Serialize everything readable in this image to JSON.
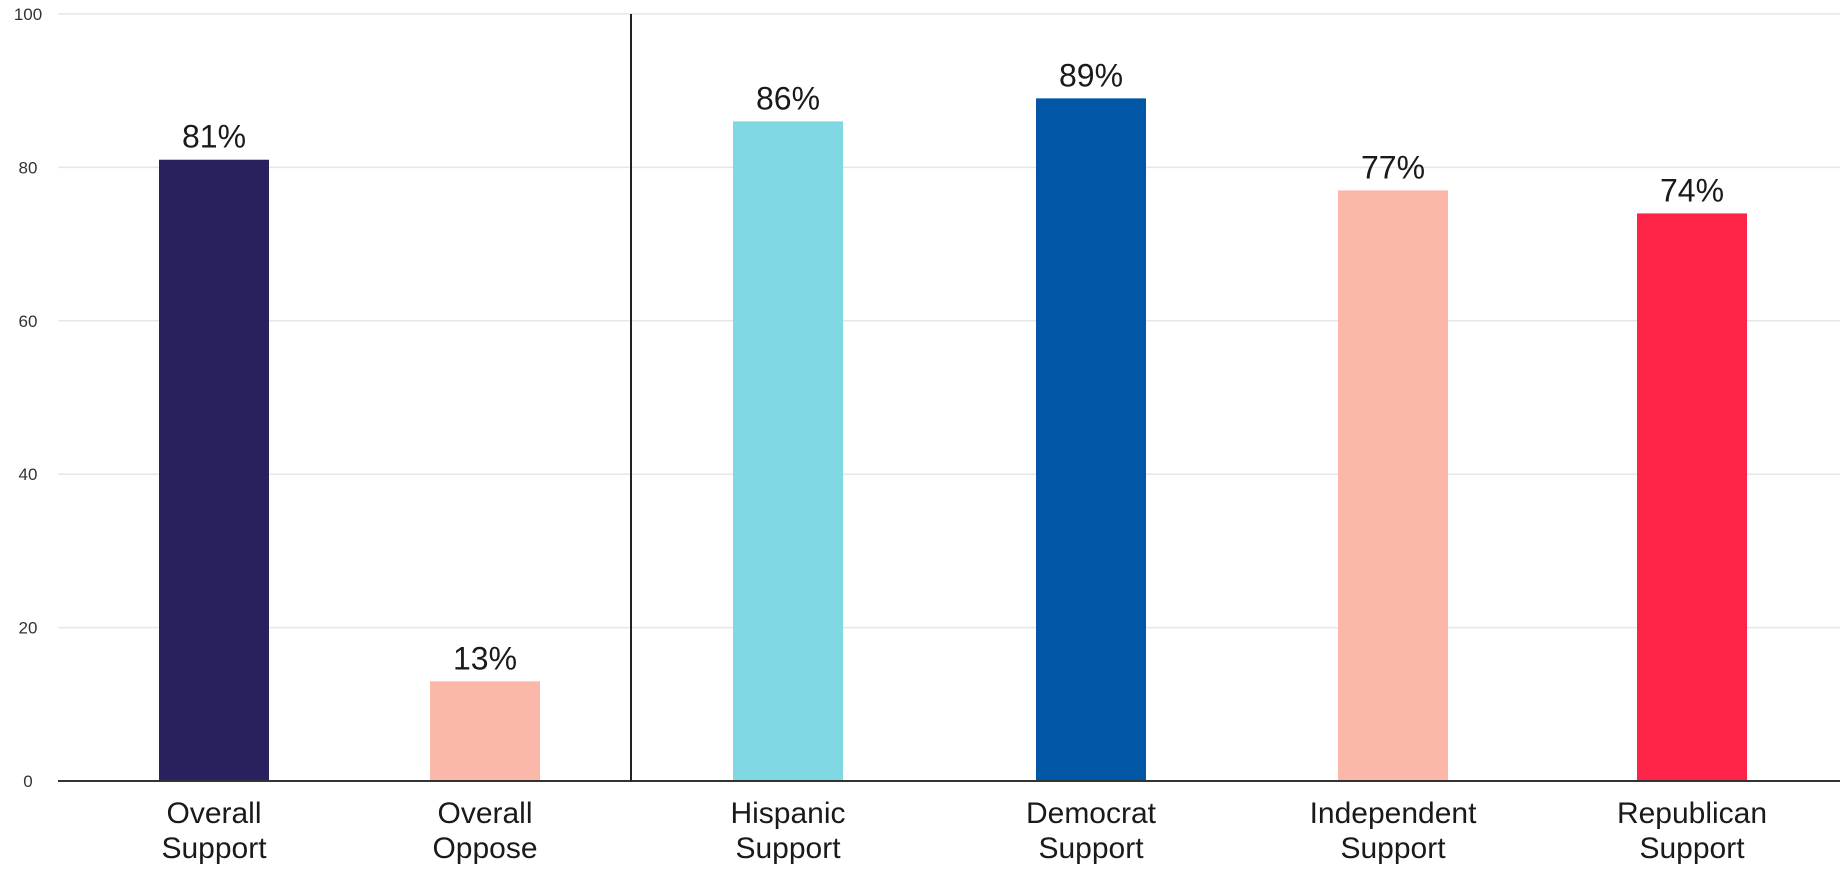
{
  "chart_data": {
    "type": "bar",
    "categories": [
      [
        "Overall",
        "Support"
      ],
      [
        "Overall",
        "Oppose"
      ],
      [
        "Hispanic",
        "Support"
      ],
      [
        "Democrat",
        "Support"
      ],
      [
        "Independent",
        "Support"
      ],
      [
        "Republican",
        "Support"
      ]
    ],
    "values": [
      81,
      13,
      86,
      89,
      77,
      74
    ],
    "value_labels": [
      "81%",
      "13%",
      "86%",
      "89%",
      "77%",
      "74%"
    ],
    "bar_colors": [
      "#27215e",
      "#fbb8a9",
      "#7fd8e2",
      "#0157a6",
      "#fbb8a9",
      "#fe2447"
    ],
    "ylim": [
      0,
      100
    ],
    "yticks": [
      0,
      20,
      40,
      60,
      80,
      100
    ],
    "grid": true,
    "divider_after_category": 1,
    "title": "",
    "xlabel": "",
    "ylabel": ""
  }
}
